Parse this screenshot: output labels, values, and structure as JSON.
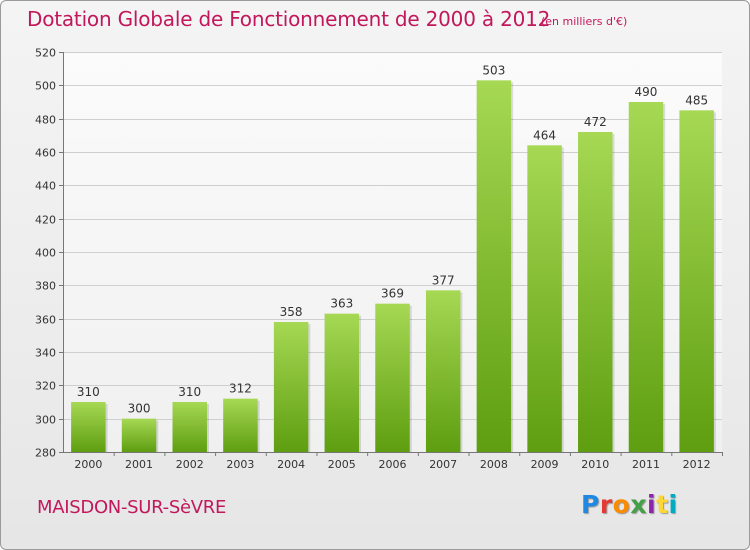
{
  "page": {
    "title": "Dotation Globale de Fonctionnement de 2000 à 2012",
    "unit_note": "(en milliers d'€)",
    "commune": "MAISDON-SUR-SèVRE",
    "logo_text": "Proxiti",
    "logo_colors": [
      "#1e88e5",
      "#e53935",
      "#fb8c00",
      "#43a047",
      "#8e24aa",
      "#fdd835",
      "#00acc1"
    ]
  },
  "chart_data": {
    "type": "bar",
    "title": "Dotation Globale de Fonctionnement de 2000 à 2012",
    "subtitle": "(en milliers d'€)",
    "xlabel": "",
    "ylabel": "",
    "categories": [
      "2000",
      "2001",
      "2002",
      "2003",
      "2004",
      "2005",
      "2006",
      "2007",
      "2008",
      "2009",
      "2010",
      "2011",
      "2012"
    ],
    "values": [
      310,
      300,
      310,
      312,
      358,
      363,
      369,
      377,
      503,
      464,
      472,
      490,
      485
    ],
    "ylim": [
      280,
      520
    ],
    "yticks": [
      280,
      300,
      320,
      340,
      360,
      380,
      400,
      420,
      440,
      460,
      480,
      500,
      520
    ],
    "grid": true,
    "bar_color_top": "#a6d854",
    "bar_color_bottom": "#5e9e10",
    "data_labels": true
  }
}
